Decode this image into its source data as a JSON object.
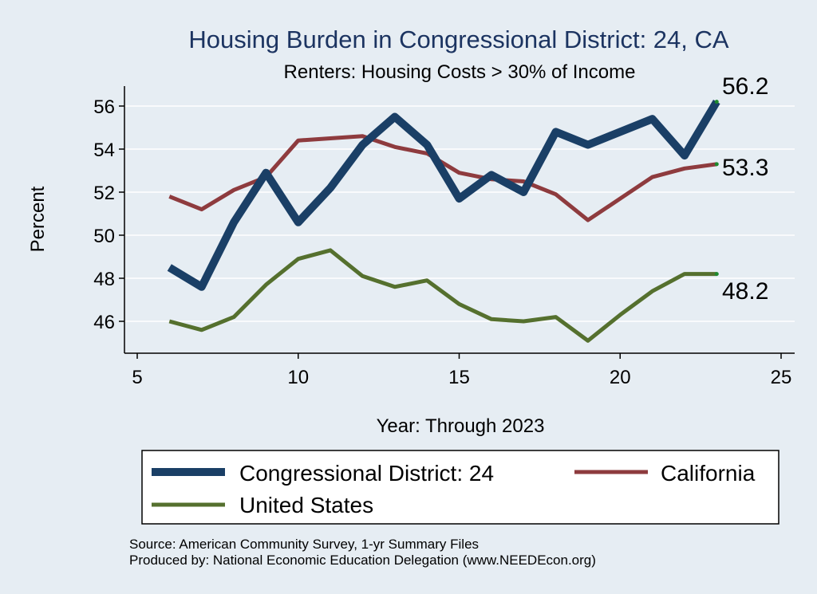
{
  "chart_data": {
    "type": "line",
    "title": "Housing Burden in Congressional District:  24, CA",
    "subtitle": "Renters: Housing Costs > 30% of Income",
    "xlabel": "Year: Through 2023",
    "ylabel": "Percent",
    "xlim": [
      5,
      25
    ],
    "ylim": [
      44.8,
      56.9
    ],
    "xticks": [
      5,
      10,
      15,
      20,
      25
    ],
    "yticks": [
      46,
      48,
      50,
      52,
      54,
      56
    ],
    "grid": true,
    "series": [
      {
        "name": "Congressional District:  24",
        "color": "#1a3f66",
        "x": [
          6,
          7,
          8,
          9,
          10,
          11,
          12,
          13,
          14,
          15,
          16,
          17,
          18,
          19,
          20,
          21,
          22,
          23
        ],
        "y": [
          48.5,
          47.6,
          50.6,
          52.9,
          50.6,
          52.2,
          54.2,
          55.5,
          54.2,
          51.7,
          52.8,
          52.0,
          54.8,
          54.2,
          54.8,
          55.4,
          53.7,
          56.2
        ],
        "end_label": "56.2"
      },
      {
        "name": "California",
        "color": "#8e3b3e",
        "x": [
          6,
          7,
          8,
          9,
          10,
          11,
          12,
          13,
          14,
          15,
          16,
          17,
          18,
          19,
          20,
          21,
          22,
          23
        ],
        "y": [
          51.8,
          51.2,
          52.1,
          52.7,
          54.4,
          54.5,
          54.6,
          54.1,
          53.8,
          52.9,
          52.6,
          52.5,
          51.9,
          50.7,
          51.7,
          52.7,
          53.1,
          53.3
        ],
        "end_label": "53.3"
      },
      {
        "name": "United States",
        "color": "#55702e",
        "x": [
          6,
          7,
          8,
          9,
          10,
          11,
          12,
          13,
          14,
          15,
          16,
          17,
          18,
          19,
          20,
          21,
          22,
          23
        ],
        "y": [
          46.0,
          45.6,
          46.2,
          47.7,
          48.9,
          49.3,
          48.1,
          47.6,
          47.9,
          46.8,
          46.1,
          46.0,
          46.2,
          45.1,
          46.3,
          47.4,
          48.2,
          48.2
        ],
        "end_label": "48.2"
      }
    ],
    "legend": {
      "placement": "bottom",
      "items": [
        "Congressional District:  24",
        "California",
        "United States"
      ]
    },
    "source_lines": [
      "Source: American Community Survey, 1-yr Summary Files",
      "Produced by: National Economic Education Delegation (www.NEEDEcon.org)"
    ]
  }
}
